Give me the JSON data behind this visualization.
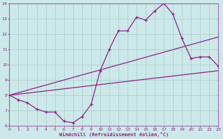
{
  "xlabel": "Windchill (Refroidissement éolien,°C)",
  "bg_color": "#cce8e8",
  "line_color": "#882288",
  "grid_color": "#aacccc",
  "xlim": [
    0,
    23
  ],
  "ylim": [
    6,
    14
  ],
  "xticks": [
    0,
    1,
    2,
    3,
    4,
    5,
    6,
    7,
    8,
    9,
    10,
    11,
    12,
    13,
    14,
    15,
    16,
    17,
    18,
    19,
    20,
    21,
    22,
    23
  ],
  "yticks": [
    6,
    7,
    8,
    9,
    10,
    11,
    12,
    13,
    14
  ],
  "line1_x": [
    0,
    1,
    2,
    3,
    4,
    5,
    6,
    7,
    8,
    9,
    10,
    11,
    12,
    13,
    14,
    15,
    16,
    17,
    18,
    19,
    20,
    21,
    22,
    23
  ],
  "line1_y": [
    8.0,
    7.7,
    7.5,
    7.1,
    6.9,
    6.9,
    6.3,
    6.2,
    6.6,
    7.4,
    9.6,
    11.0,
    12.2,
    12.2,
    13.1,
    12.9,
    13.5,
    14.0,
    13.3,
    11.7,
    10.4,
    10.5,
    10.5,
    9.9
  ],
  "line2_x": [
    0,
    23
  ],
  "line2_y": [
    8.0,
    9.6
  ],
  "line3_x": [
    0,
    23
  ],
  "line3_y": [
    8.0,
    11.8
  ]
}
